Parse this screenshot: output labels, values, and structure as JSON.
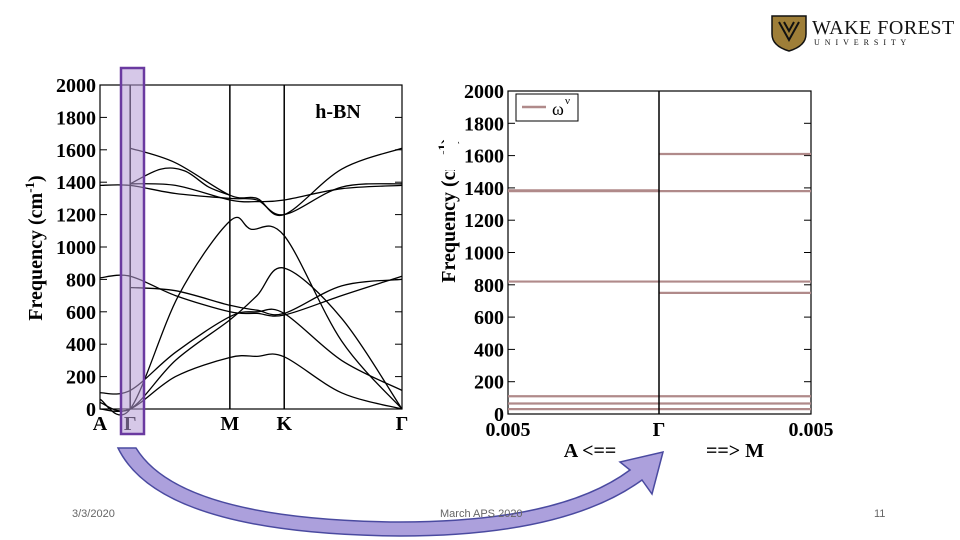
{
  "slide": {
    "logo": {
      "name_line1": "WAKE FOREST",
      "name_line2": "U N I V E R S I T Y",
      "colors": {
        "gold": "#9e7e38",
        "black": "#111111"
      }
    },
    "footer": {
      "date": "3/3/2020",
      "center": "March APS 2020",
      "page": "11"
    },
    "highlight_color": "#b49ad6",
    "highlight_border": "#6a3aa0",
    "arrow_color": "#9d8fd6"
  },
  "chart_data": [
    {
      "type": "line",
      "title": "h-BN",
      "ylabel": "Frequency (cm-1)",
      "ylim": [
        0,
        2000
      ],
      "yticks": [
        0,
        200,
        400,
        600,
        800,
        1000,
        1200,
        1400,
        1600,
        1800,
        2000
      ],
      "x_path_labels": [
        "A",
        "Γ",
        "M",
        "K",
        "Γ"
      ],
      "x_path_positions": [
        0,
        1,
        4.3,
        6.1,
        10
      ],
      "grid": false,
      "series": [
        {
          "x": [
            0,
            1,
            2.5,
            4.3,
            5.2,
            6.1,
            8,
            10
          ],
          "values": [
            0,
            0,
            200,
            318,
            325,
            322,
            100,
            0
          ]
        },
        {
          "x": [
            0,
            1,
            2.5,
            4.3,
            5.2,
            6.1,
            8,
            10
          ],
          "values": [
            40,
            0,
            300,
            550,
            700,
            870,
            560,
            0
          ]
        },
        {
          "x": [
            0,
            1,
            2.6,
            4.3,
            5.0,
            6.1,
            8,
            10
          ],
          "values": [
            60,
            0,
            700,
            1160,
            1110,
            1070,
            420,
            0
          ]
        },
        {
          "x": [
            0,
            1,
            2.5,
            4.3,
            5.2,
            6.1,
            8,
            10
          ],
          "values": [
            100,
            115,
            350,
            570,
            600,
            590,
            300,
            115
          ]
        },
        {
          "x": [
            0,
            1,
            2.5,
            4.3,
            5.2,
            6.1,
            8,
            10
          ],
          "values": [
            810,
            820,
            700,
            600,
            590,
            580,
            700,
            820
          ]
        },
        {
          "x": [
            1,
            2.5,
            4.3,
            5.2,
            6.1,
            8,
            10
          ],
          "values": [
            750,
            730,
            640,
            610,
            590,
            760,
            800
          ]
        },
        {
          "x": [
            0,
            1,
            2.5,
            4.3,
            5.2,
            6.1,
            8,
            10
          ],
          "values": [
            1380,
            1380,
            1330,
            1300,
            1290,
            1200,
            1370,
            1390
          ]
        },
        {
          "x": [
            1,
            2.5,
            4.3,
            5.2,
            6.1,
            8,
            10
          ],
          "values": [
            1390,
            1380,
            1290,
            1280,
            1290,
            1360,
            1380
          ]
        },
        {
          "x": [
            1,
            2.5,
            4.3,
            5.2,
            6.1,
            8,
            10
          ],
          "values": [
            1610,
            1520,
            1320,
            1300,
            1200,
            1480,
            1610
          ]
        },
        {
          "x": [
            1,
            2,
            2.8,
            3.6,
            4.3
          ],
          "values": [
            1390,
            1480,
            1470,
            1370,
            1320
          ]
        }
      ]
    },
    {
      "type": "line",
      "ylabel": "Frequency (cm-1)",
      "ylim": [
        0,
        2000
      ],
      "yticks": [
        0,
        200,
        400,
        600,
        800,
        1000,
        1200,
        1400,
        1600,
        1800,
        2000
      ],
      "x_tick_labels": [
        "0.005",
        "Γ",
        "0.005"
      ],
      "x_direction_labels": [
        "A <==",
        "==> M"
      ],
      "legend": {
        "label": "ω",
        "superscript": "ν",
        "position": "top-left"
      },
      "line_color": "#b08a8a",
      "grid": false,
      "branches": {
        "left_A": [
          30,
          65,
          110,
          820,
          1380,
          1385
        ],
        "right_M": [
          30,
          65,
          110,
          750,
          820,
          1380,
          1610
        ]
      }
    }
  ]
}
